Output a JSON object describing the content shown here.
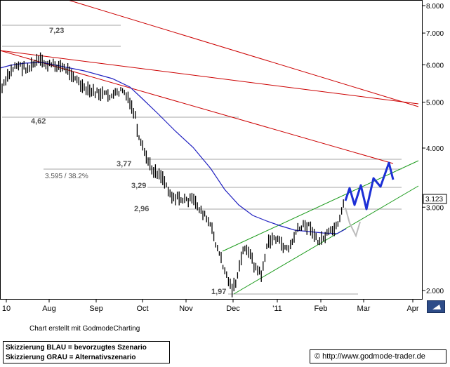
{
  "chart_data": {
    "type": "line",
    "x_labels": [
      "10",
      "Aug",
      "Sep",
      "Oct",
      "Nov",
      "Dec",
      "'11",
      "Feb",
      "Mar",
      "Apr"
    ],
    "y_ticks": [
      "8.000",
      "7.000",
      "6.000",
      "5.000",
      "4.000",
      "3.000",
      "2.000"
    ],
    "y_scale": "log",
    "last_price": "3.123",
    "levels": [
      {
        "label": "7,23",
        "value": 7.23
      },
      {
        "label": "4,62",
        "value": 4.62
      },
      {
        "label": "3,77",
        "value": 3.77
      },
      {
        "label": "3,29",
        "value": 3.29
      },
      {
        "label": "2,96",
        "value": 2.96
      },
      {
        "label": "1,97",
        "value": 1.97
      }
    ],
    "fib_label": "3.595 / 38.2%",
    "colors": {
      "price": "#000000",
      "average": "#2020c0",
      "trendlines": "#cc0000",
      "channel": "#1a9a1a",
      "preferred": "#1c2fd6",
      "alternative": "#bbbbbb"
    }
  },
  "footer": {
    "credit": "Chart erstellt mit GodmodeCharting",
    "legend_blue": "Skizzierung BLAU = bevorzugtes Szenario",
    "legend_grey": "Skizzierung GRAU = Alternativszenario",
    "url": "© http://www.godmode-trader.de"
  }
}
